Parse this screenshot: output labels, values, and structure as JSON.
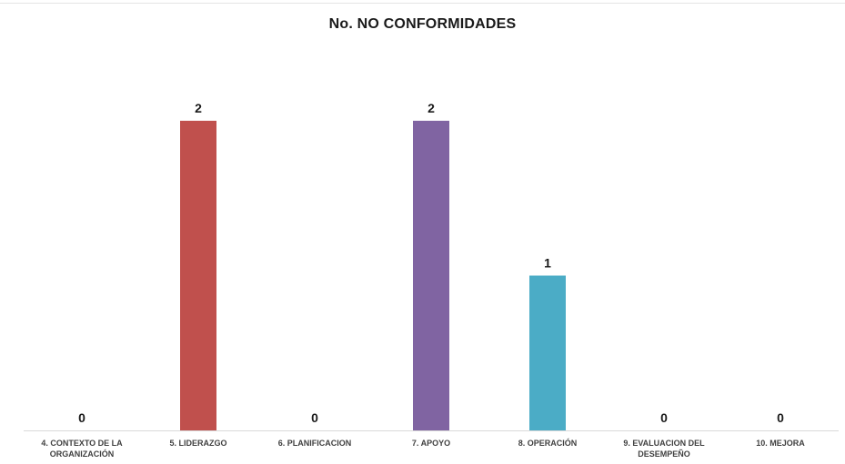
{
  "chart_data": {
    "type": "bar",
    "title": "No. NO CONFORMIDADES",
    "xlabel": "",
    "ylabel": "",
    "categories": [
      "4. CONTEXTO DE LA ORGANIZACIÓN",
      "5. LIDERAZGO",
      "6. PLANIFICACION",
      "7. APOYO",
      "8. OPERACIÓN",
      "9. EVALUACION DEL DESEMPEÑO",
      "10. MEJORA"
    ],
    "category_lines": [
      [
        "4. CONTEXTO DE LA",
        "ORGANIZACIÓN"
      ],
      [
        "5. LIDERAZGO"
      ],
      [
        "6. PLANIFICACION"
      ],
      [
        "7. APOYO"
      ],
      [
        "8. OPERACIÓN"
      ],
      [
        "9. EVALUACION DEL",
        "DESEMPEÑO"
      ],
      [
        "10. MEJORA"
      ]
    ],
    "values": [
      0,
      2,
      0,
      2,
      1,
      0,
      0
    ],
    "colors": [
      "#4f81bd",
      "#c0504d",
      "#9bbb59",
      "#8064a2",
      "#4bacc6",
      "#f79646",
      "#2c4d75"
    ],
    "ylim": [
      0,
      2
    ],
    "grid": false,
    "legend": "none",
    "data_labels": true
  }
}
